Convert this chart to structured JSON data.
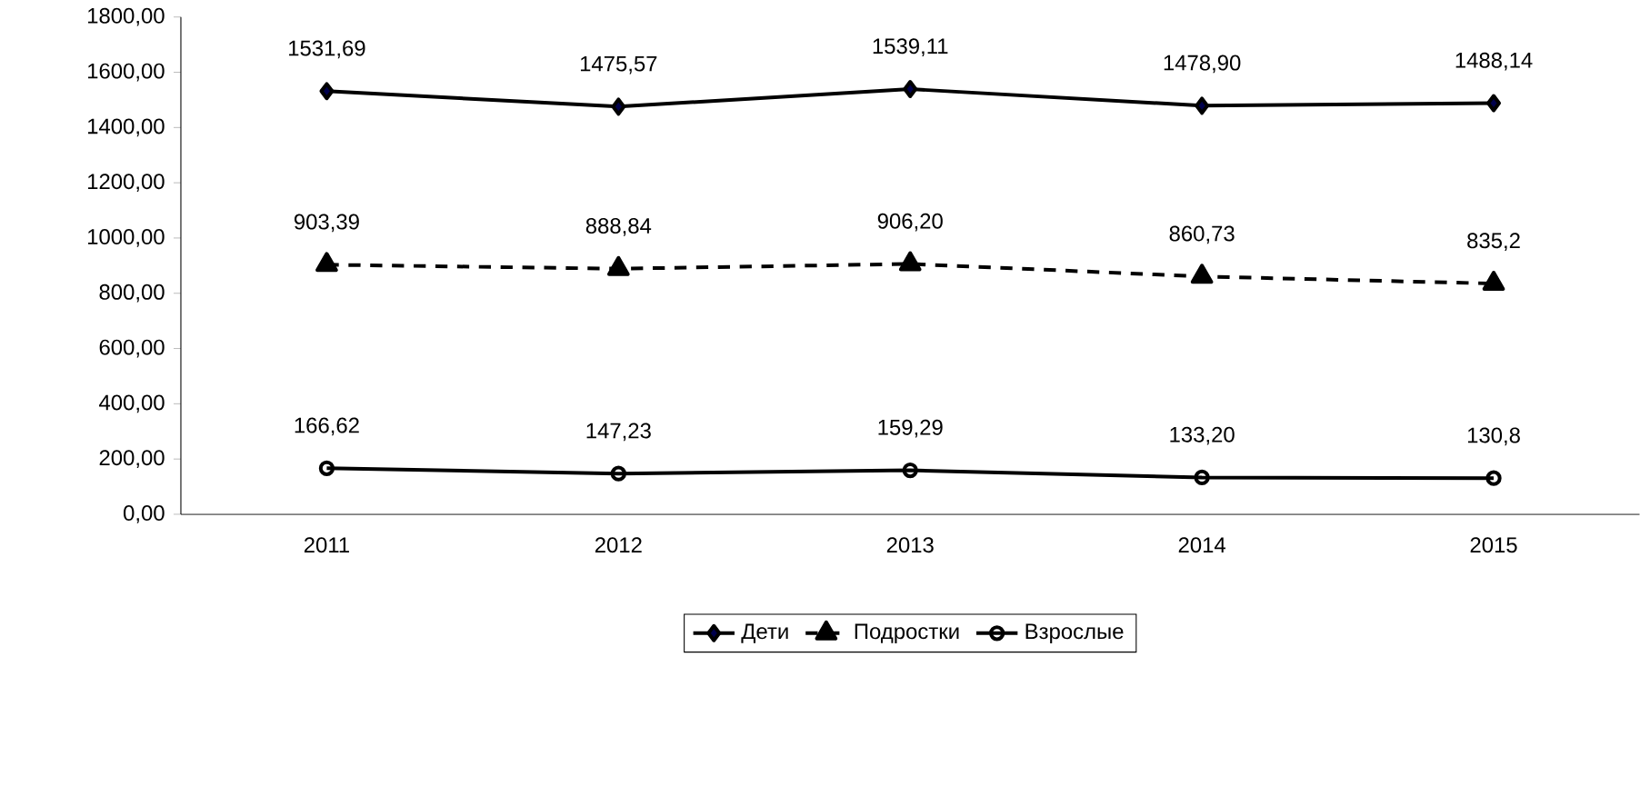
{
  "chart_data": {
    "type": "line",
    "categories": [
      "2011",
      "2012",
      "2013",
      "2014",
      "2015"
    ],
    "series": [
      {
        "name": "Дети",
        "color": "#000000",
        "marker": "diamond",
        "line_style": "solid",
        "values": [
          1531.69,
          1475.57,
          1539.11,
          1478.9,
          1488.14
        ],
        "value_labels": [
          "1531,69",
          "1475,57",
          "1539,11",
          "1478,90",
          "1488,14"
        ]
      },
      {
        "name": "Подростки",
        "color": "#000000",
        "marker": "triangle",
        "line_style": "dashed",
        "values": [
          903.39,
          888.84,
          906.2,
          860.73,
          835.2
        ],
        "value_labels": [
          "903,39",
          "888,84",
          "906,20",
          "860,73",
          "835,2"
        ]
      },
      {
        "name": "Взрослые",
        "color": "#000000",
        "marker": "circle",
        "line_style": "solid",
        "values": [
          166.62,
          147.23,
          159.29,
          133.2,
          130.8
        ],
        "value_labels": [
          "166,62",
          "147,23",
          "159,29",
          "133,20",
          "130,8"
        ]
      }
    ],
    "ylim": [
      0,
      1800
    ],
    "yticks": [
      {
        "value": 0,
        "label": "0,00"
      },
      {
        "value": 200,
        "label": "200,00"
      },
      {
        "value": 400,
        "label": "400,00"
      },
      {
        "value": 600,
        "label": "600,00"
      },
      {
        "value": 800,
        "label": "800,00"
      },
      {
        "value": 1000,
        "label": "1000,00"
      },
      {
        "value": 1200,
        "label": "1200,00"
      },
      {
        "value": 1400,
        "label": "1400,00"
      },
      {
        "value": 1600,
        "label": "1600,00"
      },
      {
        "value": 1800,
        "label": "1800,00"
      }
    ],
    "legend": "bottom"
  }
}
